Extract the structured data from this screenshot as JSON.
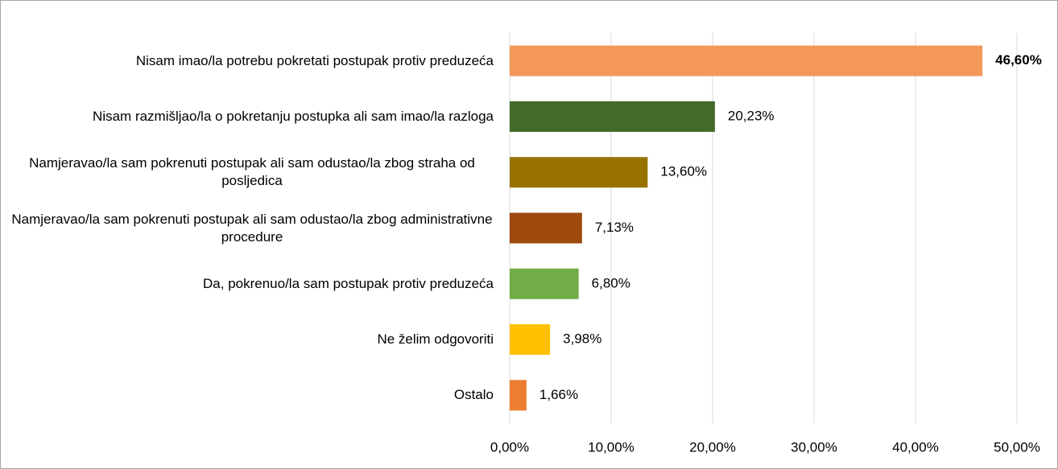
{
  "chart_data": {
    "type": "bar",
    "orientation": "horizontal",
    "categories": [
      "Nisam imao/la potrebu pokretati postupak protiv preduzeća",
      "Nisam razmišljao/la o pokretanju postupka ali sam imao/la razloga",
      "Namjeravao/la sam pokrenuti postupak ali sam odustao/la zbog straha od posljedica",
      "Namjeravao/la sam pokrenuti postupak ali sam odustao/la zbog administrativne procedure",
      "Da, pokrenuo/la sam postupak protiv preduzeća",
      "Ne želim odgovoriti",
      "Ostalo"
    ],
    "values": [
      46.6,
      20.23,
      13.6,
      7.13,
      6.8,
      3.98,
      1.66
    ],
    "value_labels": [
      "46,60%",
      "20,23%",
      "13,60%",
      "7,13%",
      "6,80%",
      "3,98%",
      "1,66%"
    ],
    "colors": [
      "#f4985a",
      "#426a2a",
      "#997300",
      "#9e480e",
      "#70ad47",
      "#ffc000",
      "#ed7d31"
    ],
    "xlim": [
      0,
      50
    ],
    "xticks": [
      {
        "value": 0,
        "label": "0,00%"
      },
      {
        "value": 10,
        "label": "10,00%"
      },
      {
        "value": 20,
        "label": "20,00%"
      },
      {
        "value": 30,
        "label": "30,00%"
      },
      {
        "value": 40,
        "label": "40,00%"
      },
      {
        "value": 50,
        "label": "50,00%"
      }
    ],
    "grid": true
  }
}
